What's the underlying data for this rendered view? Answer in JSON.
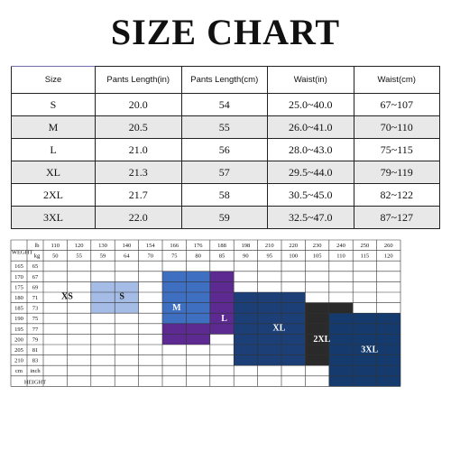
{
  "title": "SIZE CHART",
  "size_table": {
    "headers": [
      "Size",
      "Pants Length(in)",
      "Pants Length(cm)",
      "Waist(in)",
      "Waist(cm)"
    ],
    "rows": [
      [
        "S",
        "20.0",
        "54",
        "25.0~40.0",
        "67~107"
      ],
      [
        "M",
        "20.5",
        "55",
        "26.0~41.0",
        "70~110"
      ],
      [
        "L",
        "21.0",
        "56",
        "28.0~43.0",
        "75~115"
      ],
      [
        "XL",
        "21.3",
        "57",
        "29.5~44.0",
        "79~119"
      ],
      [
        "2XL",
        "21.7",
        "58",
        "30.5~45.0",
        "82~122"
      ],
      [
        "3XL",
        "22.0",
        "59",
        "32.5~47.0",
        "87~127"
      ]
    ]
  },
  "grid": {
    "weight_label": "WEGHT",
    "height_label": "HEIGHT",
    "lb_label": "lb",
    "kg_label": "kg",
    "cm_label": "cm",
    "inch_label": "inch",
    "lb_values": [
      "110",
      "120",
      "130",
      "140",
      "154",
      "166",
      "176",
      "188",
      "198",
      "210",
      "220",
      "230",
      "240",
      "250",
      "260"
    ],
    "kg_values": [
      "50",
      "55",
      "59",
      "64",
      "70",
      "75",
      "80",
      "85",
      "90",
      "95",
      "100",
      "105",
      "110",
      "115",
      "120"
    ],
    "height_rows": [
      {
        "cm": "165",
        "inch": "65"
      },
      {
        "cm": "170",
        "inch": "67"
      },
      {
        "cm": "175",
        "inch": "69"
      },
      {
        "cm": "180",
        "inch": "71"
      },
      {
        "cm": "185",
        "inch": "73"
      },
      {
        "cm": "190",
        "inch": "75"
      },
      {
        "cm": "195",
        "inch": "77"
      },
      {
        "cm": "200",
        "inch": "79"
      },
      {
        "cm": "205",
        "inch": "81"
      },
      {
        "cm": "210",
        "inch": "83"
      }
    ],
    "bands": [
      {
        "label": "XS",
        "color": "#f3a55c",
        "label_color": "#111111",
        "label_col": 1.0,
        "label_row": 3.3,
        "rects": [
          [
            1,
            3,
            2,
            3
          ]
        ]
      },
      {
        "label": "S",
        "color": "#a5bde6",
        "label_color": "#111111",
        "label_col": 3.3,
        "label_row": 3.3,
        "rects": [
          [
            2,
            2,
            4,
            5
          ]
        ]
      },
      {
        "label": "M",
        "color": "#3f6fc0",
        "label_color": "#ffffff",
        "label_col": 5.6,
        "label_row": 4.4,
        "rects": [
          [
            5,
            1,
            7,
            6
          ]
        ]
      },
      {
        "label": "L",
        "color": "#5c2a91",
        "label_color": "#ffffff",
        "label_col": 7.6,
        "label_row": 5.4,
        "rects": [
          [
            7,
            1,
            8,
            7
          ],
          [
            5,
            6,
            7,
            8
          ]
        ]
      },
      {
        "label": "XL",
        "color": "#1c3f78",
        "label_color": "#ffffff",
        "label_col": 9.9,
        "label_row": 6.3,
        "rects": [
          [
            8,
            3,
            11,
            10
          ]
        ]
      },
      {
        "label": "2XL",
        "color": "#2a2a2a",
        "label_color": "#ffffff",
        "label_col": 11.7,
        "label_row": 7.4,
        "rects": [
          [
            11,
            4,
            13,
            10
          ]
        ]
      },
      {
        "label": "3XL",
        "color": "#143a6e",
        "label_color": "#ffffff",
        "label_col": 13.7,
        "label_row": 8.4,
        "rects": [
          [
            12,
            5,
            15,
            12
          ]
        ]
      }
    ]
  }
}
